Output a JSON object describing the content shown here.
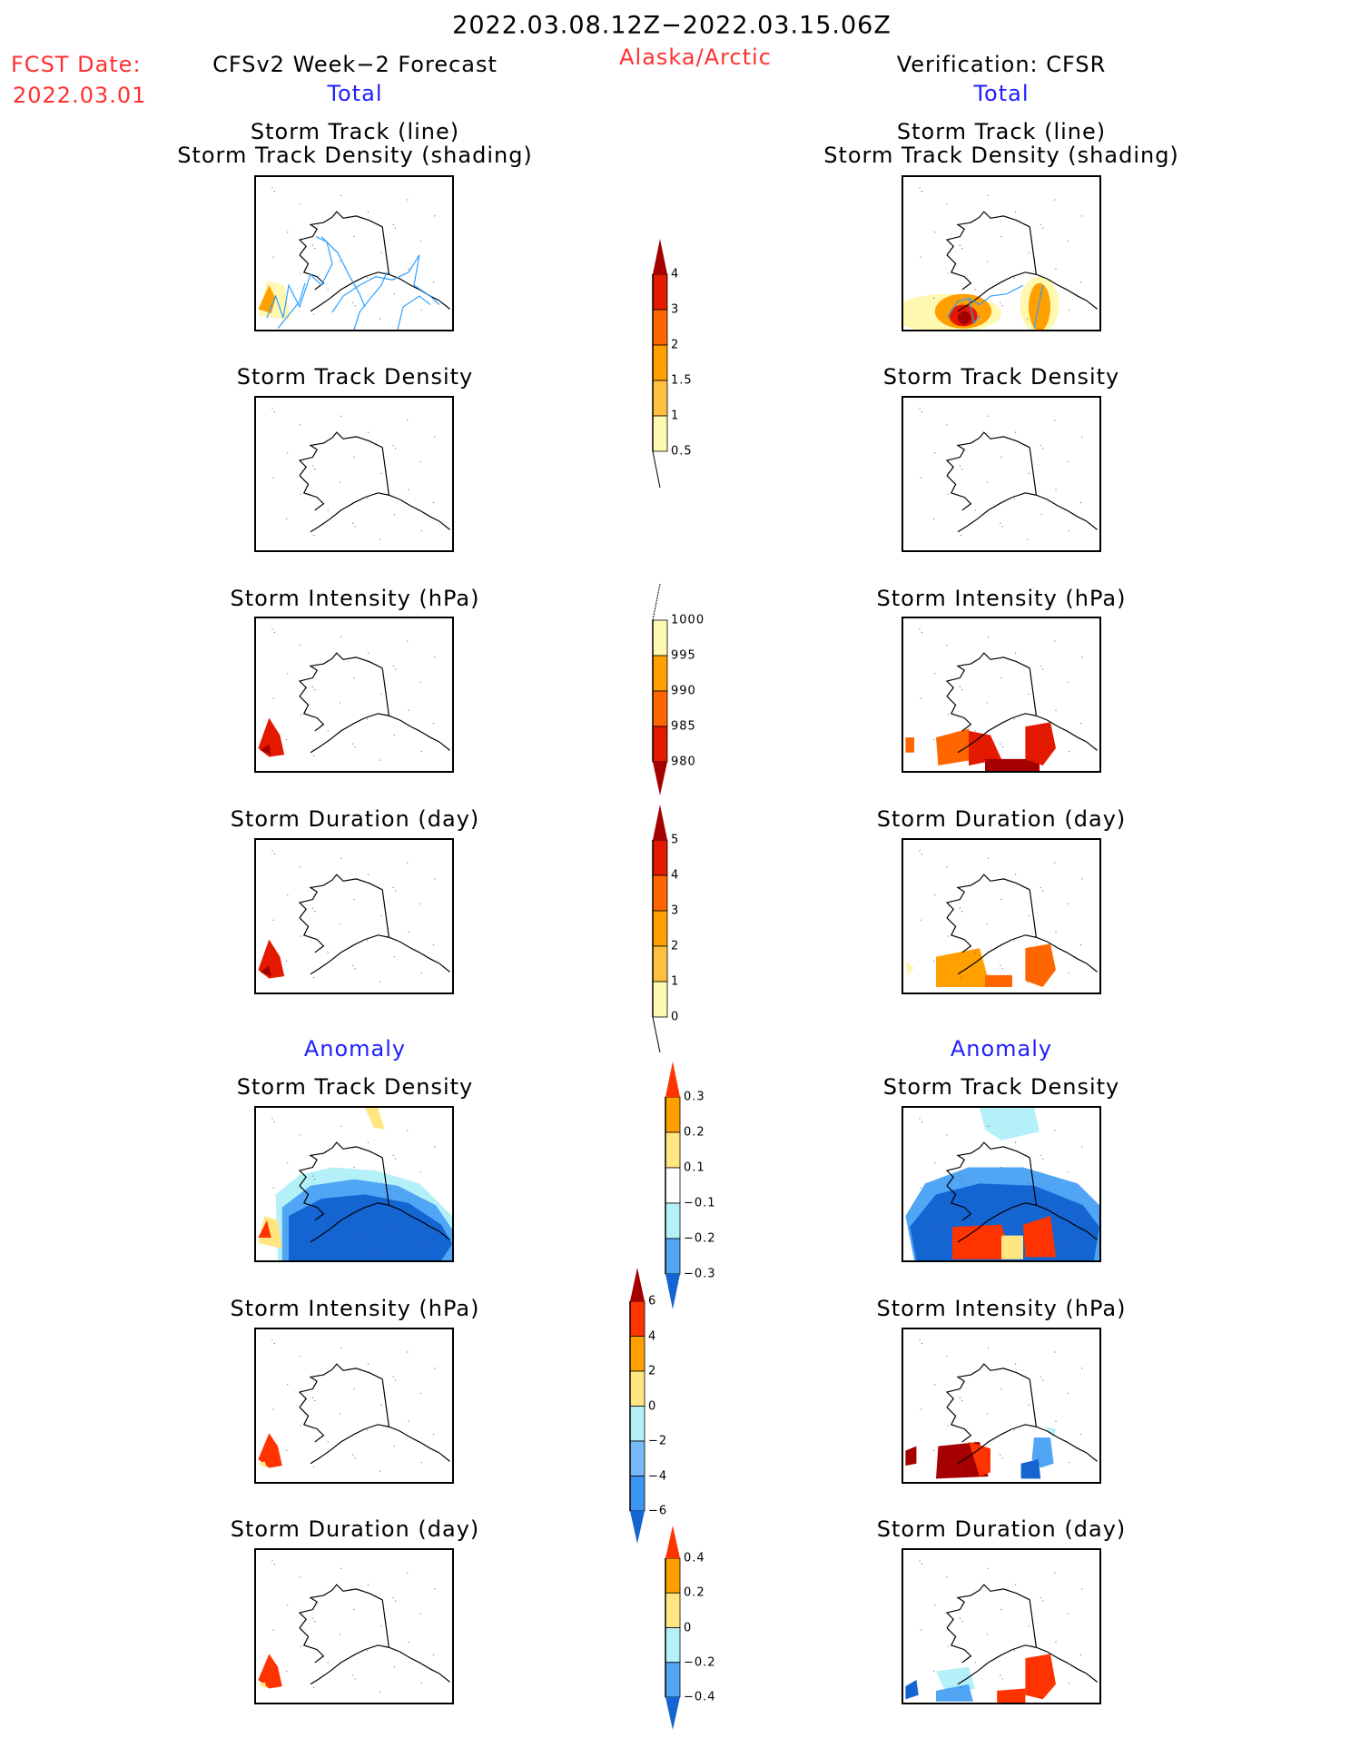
{
  "header": {
    "title": "2022.03.08.12Z−2022.03.15.06Z",
    "fcst_label": "FCST Date:",
    "fcst_date": "2022.03.01",
    "region": "Alaska/Arctic",
    "left_source": "CFSv2 Week−2 Forecast",
    "right_source": "Verification: CFSR",
    "left_section_total": "Total",
    "right_section_total": "Total",
    "left_section_anomaly": "Anomaly",
    "right_section_anomaly": "Anomaly"
  },
  "panels": {
    "track_line": "Storm Track (line)",
    "track_density_shading": "Storm Track Density (shading)",
    "track_density": "Storm Track Density",
    "intensity": "Storm Intensity (hPa)",
    "duration": "Storm Duration (day)"
  },
  "chart_data": [
    {
      "type": "heatmap",
      "name": "Total storm track density colorbar",
      "labels": [
        "4",
        "3",
        "2",
        "1.5",
        "1",
        "0.5"
      ],
      "colors": [
        "#a50000",
        "#e31a00",
        "#ff6600",
        "#ffa000",
        "#ffc040",
        "#fff8b0"
      ],
      "extend": "max"
    },
    {
      "type": "heatmap",
      "name": "Total storm intensity colorbar",
      "labels": [
        "1000",
        "995",
        "990",
        "985",
        "980"
      ],
      "colors": [
        "#fff8b0",
        "#ffa000",
        "#ff6600",
        "#e31a00",
        "#a50000"
      ],
      "extend": "min"
    },
    {
      "type": "heatmap",
      "name": "Total storm duration colorbar",
      "labels": [
        "5",
        "4",
        "3",
        "2",
        "1",
        "0"
      ],
      "colors": [
        "#a50000",
        "#e31a00",
        "#ff6600",
        "#ffa000",
        "#ffc040",
        "#fff8b0"
      ],
      "extend": "max"
    },
    {
      "type": "heatmap",
      "name": "Anomaly storm track density colorbar",
      "labels": [
        "0.3",
        "0.2",
        "0.1",
        "−0.1",
        "−0.2",
        "−0.3"
      ],
      "colors": [
        "#ff3300",
        "#ffa000",
        "#ffe680",
        "#ffffff",
        "#b4f0f8",
        "#50a5f5",
        "#1464d2"
      ],
      "extend": "both"
    },
    {
      "type": "heatmap",
      "name": "Anomaly storm intensity colorbar",
      "labels": [
        "6",
        "4",
        "2",
        "0",
        "−2",
        "−4",
        "−6"
      ],
      "colors": [
        "#a50000",
        "#ff3300",
        "#ffa000",
        "#ffe680",
        "#b4f0f8",
        "#78b9f8",
        "#3c96f0",
        "#1464d2"
      ],
      "extend": "both"
    },
    {
      "type": "heatmap",
      "name": "Anomaly storm duration colorbar",
      "labels": [
        "0.4",
        "0.2",
        "0",
        "−0.2",
        "−0.4"
      ],
      "colors": [
        "#ff3300",
        "#ffa000",
        "#ffe680",
        "#b4f0f8",
        "#50a5f5",
        "#1464d2"
      ],
      "extend": "both"
    }
  ]
}
